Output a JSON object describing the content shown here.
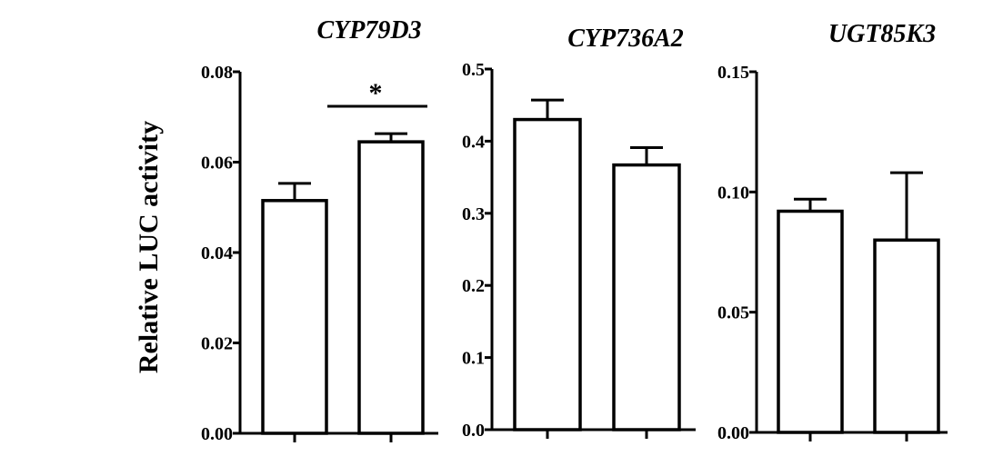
{
  "ylabel": "Relative LUC activity",
  "chart_data": [
    {
      "type": "bar",
      "title": "CYP79D3",
      "ylim": [
        0,
        0.08
      ],
      "yticks": [
        "0.00",
        "0.02",
        "0.04",
        "0.06",
        "0.08"
      ],
      "values": [
        0.0515,
        0.0645
      ],
      "errors": [
        0.0038,
        0.0018
      ],
      "significance": "*"
    },
    {
      "type": "bar",
      "title": "CYP736A2",
      "ylim": [
        0,
        0.5
      ],
      "yticks": [
        "0.0",
        "0.1",
        "0.2",
        "0.3",
        "0.4",
        "0.5"
      ],
      "values": [
        0.43,
        0.367
      ],
      "errors": [
        0.027,
        0.024
      ]
    },
    {
      "type": "bar",
      "title": "UGT85K3",
      "ylim": [
        0,
        0.15
      ],
      "yticks": [
        "0.00",
        "0.05",
        "0.10",
        "0.15"
      ],
      "values": [
        0.092,
        0.08
      ],
      "errors": [
        0.005,
        0.028
      ]
    }
  ]
}
